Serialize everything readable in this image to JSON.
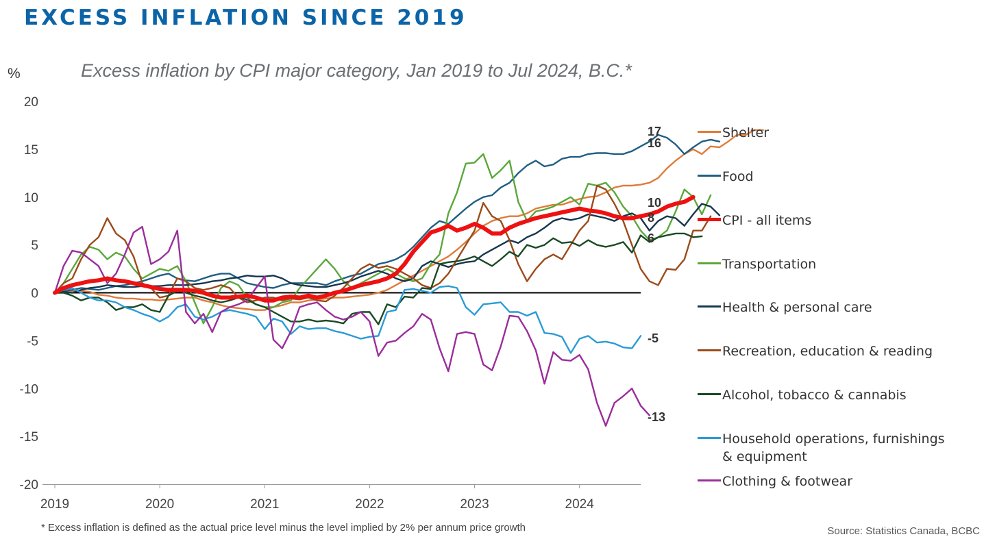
{
  "page_title": "EXCESS INFLATION SINCE 2019",
  "chart_data": {
    "type": "line",
    "title": "Excess inflation by CPI major category, Jan 2019 to Jul 2024, B.C.*",
    "ylabel": "%",
    "ylim": [
      -20,
      20
    ],
    "yticks": [
      20,
      15,
      10,
      5,
      0,
      -5,
      -10,
      -15,
      -20
    ],
    "xticks": [
      "2019",
      "2020",
      "2021",
      "2022",
      "2023",
      "2024"
    ],
    "x_start": "2019-01",
    "legend_position": "right",
    "series": [
      {
        "name": "Shelter",
        "color": "#e07b39",
        "end_label": "17",
        "values": [
          0,
          0.1,
          0.2,
          0.2,
          0.1,
          -0.2,
          -0.3,
          -0.5,
          -0.6,
          -0.6,
          -0.7,
          -0.7,
          -0.8,
          -0.7,
          -0.6,
          -0.5,
          -0.5,
          -0.8,
          -1.0,
          -1.3,
          -1.5,
          -1.6,
          -1.7,
          -1.8,
          -1.8,
          -1.5,
          -1.3,
          -1.0,
          -1.0,
          -0.8,
          -0.7,
          -0.6,
          -0.5,
          -0.5,
          -0.4,
          -0.3,
          -0.2,
          0.0,
          0.3,
          0.8,
          1.3,
          1.8,
          2.3,
          2.8,
          3.3,
          3.8,
          4.5,
          5.3,
          6.2,
          7.0,
          7.5,
          7.8,
          8.0,
          8.0,
          8.3,
          8.8,
          9.0,
          9.2,
          9.2,
          9.5,
          9.8,
          10.0,
          10.1,
          10.5,
          11.0,
          11.2,
          11.2,
          11.3,
          11.5,
          12.0,
          13.0,
          13.8,
          14.5,
          15.0,
          14.5,
          15.3,
          15.2,
          15.8,
          16.5,
          16.5,
          17.0,
          17.0
        ]
      },
      {
        "name": "Food",
        "color": "#1f5f82",
        "end_label": "16",
        "values": [
          0,
          0.2,
          0.3,
          0.5,
          0.4,
          0.3,
          0.5,
          0.7,
          0.8,
          1.0,
          1.2,
          1.5,
          1.8,
          2.0,
          1.5,
          1.3,
          1.2,
          1.5,
          1.8,
          2.0,
          2.0,
          1.5,
          1.0,
          0.8,
          0.6,
          0.5,
          0.8,
          1.0,
          1.0,
          1.0,
          1.0,
          0.8,
          1.2,
          1.5,
          1.8,
          2.0,
          2.5,
          3.0,
          3.2,
          3.5,
          4.0,
          4.8,
          5.8,
          6.8,
          7.5,
          7.2,
          8.0,
          8.8,
          9.5,
          10.0,
          10.2,
          11.0,
          11.5,
          12.5,
          13.3,
          13.8,
          13.2,
          13.4,
          14.0,
          14.2,
          14.2,
          14.5,
          14.6,
          14.6,
          14.5,
          14.5,
          14.8,
          15.3,
          15.8,
          16.5,
          16.2,
          15.5,
          14.5,
          15.2,
          15.8,
          16.0,
          15.8
        ]
      },
      {
        "name": "CPI - all items",
        "color": "#ee1111",
        "end_label": "10",
        "values": [
          0,
          0.5,
          0.8,
          1.0,
          1.2,
          1.3,
          1.5,
          1.3,
          1.2,
          1.0,
          0.8,
          0.6,
          0.4,
          0.3,
          0.3,
          0.3,
          0.2,
          0.0,
          -0.3,
          -0.5,
          -0.5,
          -0.4,
          -0.3,
          -0.5,
          -0.8,
          -0.8,
          -0.5,
          -0.4,
          -0.5,
          -0.3,
          -0.5,
          -0.3,
          0.0,
          0.2,
          0.5,
          0.8,
          1.0,
          1.2,
          1.5,
          2.0,
          3.0,
          4.3,
          5.3,
          6.3,
          6.6,
          7.0,
          6.5,
          6.8,
          7.2,
          6.8,
          6.2,
          6.2,
          6.8,
          7.2,
          7.5,
          7.8,
          8.0,
          8.2,
          8.4,
          8.6,
          8.8,
          8.6,
          8.5,
          8.3,
          8.0,
          7.8,
          7.8,
          8.0,
          8.2,
          8.5,
          9.0,
          9.3,
          9.5,
          10.0
        ]
      },
      {
        "name": "Transportation",
        "color": "#5aa83a",
        "end_label": "",
        "values": [
          0,
          1.0,
          2.5,
          4.0,
          4.8,
          4.5,
          3.5,
          4.2,
          3.8,
          2.5,
          1.5,
          2.0,
          2.5,
          2.3,
          2.8,
          1.2,
          -1.0,
          -3.2,
          -1.5,
          0.5,
          1.2,
          0.8,
          -0.5,
          -1.2,
          -1.5,
          -1.5,
          -1.0,
          -0.8,
          0.5,
          1.5,
          2.5,
          3.5,
          2.5,
          1.2,
          0.5,
          1.0,
          1.5,
          2.0,
          2.5,
          2.0,
          1.5,
          1.2,
          1.5,
          3.0,
          4.0,
          8.3,
          10.5,
          13.5,
          13.6,
          14.5,
          12.0,
          12.8,
          13.8,
          9.5,
          7.5,
          8.5,
          8.7,
          9.0,
          9.5,
          10.0,
          9.2,
          11.4,
          11.2,
          11.5,
          10.5,
          9.0,
          8.0,
          6.5,
          5.5,
          5.8,
          6.5,
          8.5,
          10.8,
          10.0,
          8.2,
          10.2
        ]
      },
      {
        "name": "Health & personal care",
        "color": "#17364f",
        "end_label": "8",
        "values": [
          0,
          0.1,
          0.0,
          0.3,
          0.5,
          0.6,
          0.8,
          0.7,
          0.6,
          0.6,
          0.7,
          0.7,
          0.7,
          0.8,
          0.8,
          0.8,
          0.9,
          1.0,
          1.2,
          1.3,
          1.5,
          1.6,
          1.8,
          1.7,
          1.7,
          1.8,
          1.5,
          1.0,
          0.8,
          0.7,
          0.6,
          0.6,
          0.8,
          1.0,
          1.3,
          1.7,
          2.0,
          2.3,
          2.0,
          1.5,
          1.2,
          1.5,
          2.8,
          3.3,
          3.0,
          2.7,
          3.0,
          3.2,
          3.3,
          4.0,
          4.5,
          5.0,
          5.5,
          5.2,
          5.8,
          6.2,
          6.8,
          7.5,
          7.8,
          7.6,
          7.8,
          8.2,
          8.0,
          7.8,
          7.5,
          8.0,
          8.3,
          7.8,
          6.5,
          7.5,
          8.0,
          7.8,
          7.0,
          8.2,
          9.3,
          9.0,
          8.1
        ]
      },
      {
        "name": "Recreation, education & reading",
        "color": "#9c4a1a",
        "end_label": "",
        "values": [
          0,
          1.0,
          1.5,
          3.5,
          5.0,
          5.8,
          7.8,
          6.2,
          5.5,
          3.8,
          1.0,
          0.5,
          -0.5,
          -0.3,
          1.5,
          1.2,
          0.5,
          0.3,
          0.5,
          0.8,
          0.5,
          -0.5,
          -1.0,
          -0.8,
          -0.5,
          -0.5,
          -0.8,
          -0.6,
          -0.7,
          -0.5,
          -0.8,
          -0.9,
          -0.3,
          0.5,
          1.5,
          2.5,
          3.0,
          2.6,
          2.8,
          2.5,
          2.0,
          1.5,
          0.8,
          0.5,
          1.0,
          2.0,
          3.5,
          5.0,
          6.5,
          9.4,
          8.0,
          7.5,
          5.5,
          3.0,
          1.2,
          2.5,
          3.5,
          4.0,
          3.5,
          5.0,
          6.5,
          7.5,
          11.2,
          10.8,
          9.3,
          7.5,
          5.0,
          2.5,
          1.2,
          0.8,
          2.5,
          2.4,
          3.5,
          6.5,
          6.5,
          8.0
        ]
      },
      {
        "name": "Alcohol, tobacco & cannabis",
        "color": "#1a4a24",
        "end_label": "6",
        "values": [
          0,
          0.0,
          -0.3,
          -0.8,
          -0.5,
          -0.5,
          -1.0,
          -1.8,
          -1.5,
          -1.5,
          -1.2,
          -1.8,
          -2.0,
          -0.3,
          0.2,
          0.0,
          -0.3,
          -0.5,
          -0.8,
          -1.0,
          -0.8,
          -0.5,
          -0.7,
          -1.2,
          -1.5,
          -2.0,
          -2.5,
          -3.0,
          -3.0,
          -2.8,
          -3.0,
          -2.9,
          -3.0,
          -3.2,
          -2.2,
          -2.0,
          -2.0,
          -3.3,
          -1.2,
          -1.5,
          -0.4,
          -0.5,
          0.5,
          0.4,
          3.0,
          3.2,
          3.3,
          3.5,
          3.8,
          3.3,
          2.8,
          3.5,
          4.3,
          3.8,
          5.0,
          4.7,
          5.0,
          5.7,
          5.2,
          5.3,
          4.9,
          5.5,
          5.0,
          4.8,
          5.0,
          5.3,
          4.2,
          6.0,
          5.3,
          5.8,
          6.0,
          6.2,
          6.2,
          5.8,
          5.9
        ]
      },
      {
        "name": "Household operations, furnishings & equipment",
        "color": "#2a9bd6",
        "end_label": "-5",
        "values": [
          0,
          0.3,
          0.5,
          0.0,
          -0.5,
          -0.8,
          -0.8,
          -1.0,
          -1.5,
          -1.8,
          -2.2,
          -2.5,
          -3.0,
          -2.5,
          -1.5,
          -1.2,
          -2.5,
          -2.8,
          -2.5,
          -2.0,
          -1.8,
          -2.0,
          -2.2,
          -2.5,
          -3.8,
          -2.7,
          -3.0,
          -4.3,
          -3.5,
          -3.8,
          -3.7,
          -3.7,
          -4.0,
          -4.2,
          -4.5,
          -4.8,
          -4.6,
          -4.5,
          -2.0,
          -1.8,
          0.3,
          0.4,
          0.2,
          0.0,
          0.6,
          0.7,
          0.5,
          -1.5,
          -2.3,
          -1.2,
          -1.1,
          -1.0,
          -2.0,
          -2.0,
          -2.4,
          -2.0,
          -4.2,
          -4.3,
          -4.6,
          -6.3,
          -4.8,
          -4.5,
          -5.2,
          -5.1,
          -5.3,
          -5.7,
          -5.8,
          -4.5
        ]
      },
      {
        "name": "Clothing & footwear",
        "color": "#9b2d9b",
        "end_label": "-13",
        "values": [
          0,
          2.8,
          4.4,
          4.2,
          3.5,
          2.8,
          1.0,
          2.0,
          4.0,
          6.3,
          6.9,
          3.0,
          3.5,
          4.3,
          6.5,
          -2.0,
          -3.2,
          -2.2,
          -4.1,
          -2.0,
          -1.5,
          -1.2,
          -0.8,
          0.5,
          1.7,
          -4.9,
          -5.8,
          -4.0,
          -1.5,
          -1.2,
          -1.0,
          -1.8,
          -2.5,
          -2.8,
          -2.5,
          -2.0,
          -3.0,
          -6.6,
          -5.2,
          -5.0,
          -4.2,
          -3.5,
          -2.2,
          -2.8,
          -5.8,
          -8.2,
          -4.3,
          -4.1,
          -4.3,
          -7.5,
          -8.1,
          -5.6,
          -2.4,
          -2.5,
          -4.0,
          -6.0,
          -9.5,
          -6.2,
          -7.0,
          -7.1,
          -6.5,
          -8.0,
          -11.5,
          -13.9,
          -11.5,
          -10.8,
          -10.0,
          -11.8,
          -12.8
        ]
      }
    ]
  },
  "legend_order": [
    "Shelter",
    "Food",
    "CPI - all items",
    "Transportation",
    "Health & personal care",
    "Recreation, education & reading",
    "Alcohol, tobacco & cannabis",
    "Household operations, furnishings & equipment",
    "Clothing & footwear"
  ],
  "footnote": "* Excess inflation is defined as the actual price level minus the level implied by 2% per annum price growth",
  "source": "Source: Statistics Canada, BCBC"
}
